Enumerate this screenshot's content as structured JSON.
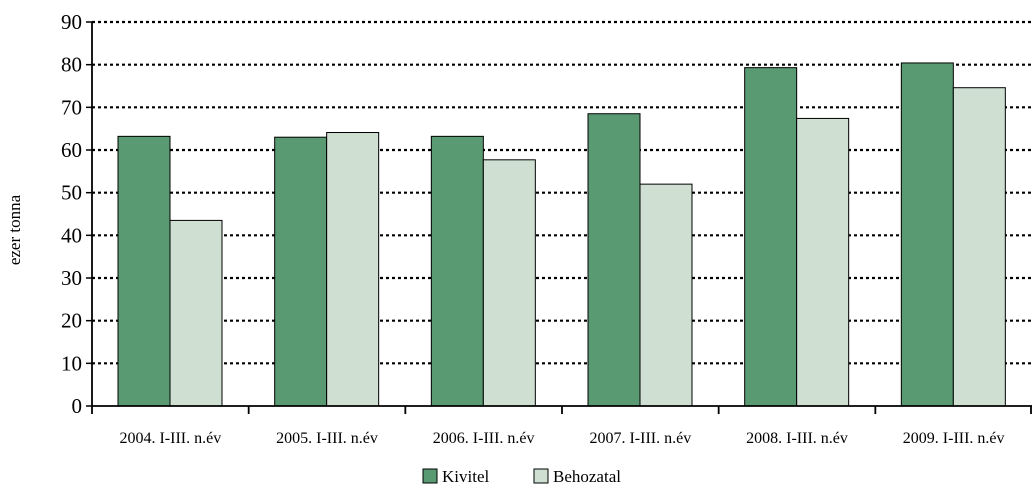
{
  "chart_data": {
    "type": "bar",
    "categories": [
      "2004. I-III. n.év",
      "2005. I-III. n.év",
      "2006. I-III. n.év",
      "2007. I-III. n.év",
      "2008. I-III. n.év",
      "2009. I-III. n.év"
    ],
    "series": [
      {
        "name": "Kivitel",
        "color": "#5a9a73",
        "values": [
          63.2,
          63.0,
          63.2,
          68.5,
          79.3,
          80.4
        ]
      },
      {
        "name": "Behozatal",
        "color": "#cfe0d3",
        "values": [
          43.5,
          64.1,
          57.7,
          52.0,
          67.4,
          74.6
        ]
      }
    ],
    "title": "",
    "xlabel": "",
    "ylabel": "ezer tonna",
    "ylim": [
      0,
      90
    ],
    "yticks": [
      0,
      10,
      20,
      30,
      40,
      50,
      60,
      70,
      80,
      90
    ],
    "grid": true,
    "grid_style": "dotted",
    "legend_position": "bottom"
  }
}
